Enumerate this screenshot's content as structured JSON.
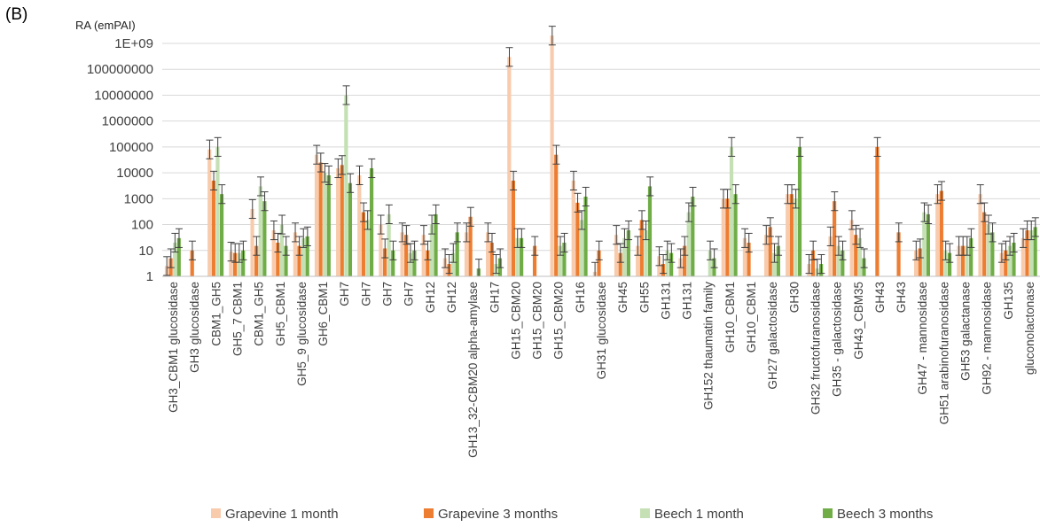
{
  "chart_data": {
    "type": "bar",
    "panel_label": "(B)",
    "ylabel": "RA (emPAI)",
    "yscale": "log",
    "ylim": [
      1,
      1000000000
    ],
    "yticks": [
      "1",
      "10",
      "100",
      "1000",
      "10000",
      "100000",
      "1000000",
      "10000000",
      "100000000",
      "1E+09"
    ],
    "grid": true,
    "legend_position": "bottom",
    "colors": {
      "grape1": "#f8cbad",
      "grape3": "#ed7d31",
      "beech1": "#c5e0b4",
      "beech3": "#70ad47"
    },
    "categories": [
      "GH3_CBM1 glucosidase",
      "GH3 glucosidase",
      "CBM1_GH5",
      "GH5_7 CBM1",
      "CBM1_GH5",
      "GH5_CBM1",
      "GH5_9 glucosidase",
      "GH6_CBM1",
      "GH7",
      "GH7",
      "GH7",
      "GH7",
      "GH12",
      "GH12",
      "GH13_32-CBM20 alpha-amylase",
      "GH17",
      "GH15_CBM20",
      "GH15_CBM20",
      "GH15_CBM20",
      "GH16",
      "GH31 glucosidase",
      "GH45",
      "GH55",
      "GH131",
      "GH131",
      "GH152 thaumatin family",
      "GH10_CBM1",
      "GH10_CBM1",
      "GH27 galactosidase",
      "GH30",
      "GH32 fructofuranosidase",
      "GH35 - galactosidase",
      "GH43_CBM35",
      "GH43",
      "GH43",
      "GH47 - mannosidase",
      "GH51 arabinofuranosidase",
      "GH53 galactanase",
      "GH92 - mannosidase",
      "GH135",
      "gluconolactonase"
    ],
    "series": [
      {
        "name": "Grapevine 1 month",
        "color": "#f8cbad",
        "values": [
          2.5,
          1,
          80000,
          9,
          400,
          60,
          50,
          50000,
          15000,
          8000,
          100,
          50,
          40,
          5,
          50,
          50,
          300000000,
          1,
          2000000000,
          5000,
          1.5,
          40,
          15,
          6,
          5,
          1,
          1000,
          30,
          40,
          1500,
          3,
          35,
          150,
          1,
          1,
          10,
          1500,
          15,
          1500,
          8,
          30
        ]
      },
      {
        "name": "Grapevine 3 months",
        "color": "#ed7d31",
        "values": [
          5,
          10,
          5000,
          8,
          15,
          20,
          15,
          25000,
          20000,
          300,
          12,
          40,
          10,
          3,
          200,
          20,
          5000,
          15,
          50000,
          700,
          10,
          8,
          150,
          3,
          15,
          1,
          1000,
          20,
          80,
          1500,
          10,
          800,
          40,
          100000,
          50,
          12,
          2000,
          15,
          300,
          10,
          60
        ]
      },
      {
        "name": "Beech 1 month",
        "color": "#c5e0b4",
        "values": [
          20,
          1,
          100000,
          8,
          3000,
          100,
          30,
          10000,
          10000000,
          150,
          250,
          8,
          100,
          8,
          1,
          3,
          30,
          1,
          15,
          150,
          1,
          30,
          60,
          10,
          300,
          10,
          100000,
          1,
          8,
          1000,
          2,
          15,
          30,
          1,
          1,
          300,
          10,
          15,
          100,
          15,
          60
        ]
      },
      {
        "name": "Beech 3 months",
        "color": "#70ad47",
        "values": [
          30,
          1,
          1500,
          10,
          800,
          15,
          35,
          8000,
          4000,
          15000,
          10,
          10,
          250,
          50,
          2,
          5,
          30,
          1,
          20,
          1200,
          1,
          60,
          3000,
          8,
          1200,
          5,
          1500,
          1,
          15,
          100000,
          3,
          10,
          5,
          1,
          1,
          250,
          8,
          30,
          50,
          20,
          80
        ]
      }
    ]
  }
}
